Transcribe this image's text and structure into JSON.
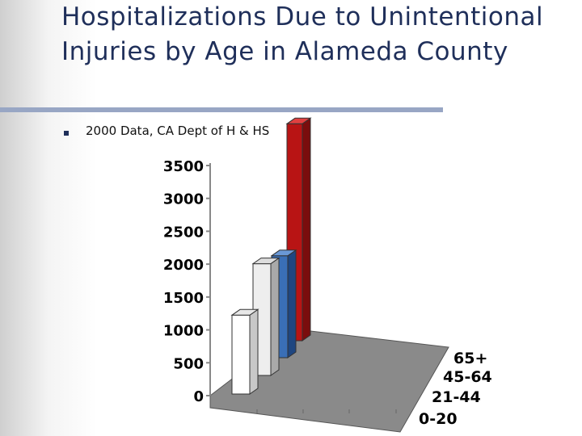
{
  "slide": {
    "title": "Hospitalizations Due to Unintentional Injuries by Age in Alameda County",
    "bullet": "2000 Data, CA Dept of H & HS"
  },
  "colors": {
    "title": "#1f2f5a",
    "floor": "#8a8a8a"
  },
  "chart_data": {
    "type": "bar",
    "projection": "3d",
    "title": "",
    "xlabel": "",
    "ylabel": "",
    "ylim": [
      0,
      3500
    ],
    "yticks": [
      "0",
      "500",
      "1000",
      "1500",
      "2000",
      "2500",
      "3000",
      "3500"
    ],
    "categories": [
      "0-20",
      "21-44",
      "45-64",
      "65+"
    ],
    "values": [
      1200,
      1700,
      1550,
      3300
    ],
    "bar_colors": [
      {
        "front": "#ffffff",
        "side": "#c8c8c8",
        "top": "#e8e8e8"
      },
      {
        "front": "#eeeeee",
        "side": "#a9a9a9",
        "top": "#dddddd"
      },
      {
        "front": "#3a6fb7",
        "side": "#1f4680",
        "top": "#6a98d6"
      },
      {
        "front": "#b81414",
        "side": "#7a0d0d",
        "top": "#e04040"
      }
    ],
    "grid": false,
    "legend": "none"
  }
}
